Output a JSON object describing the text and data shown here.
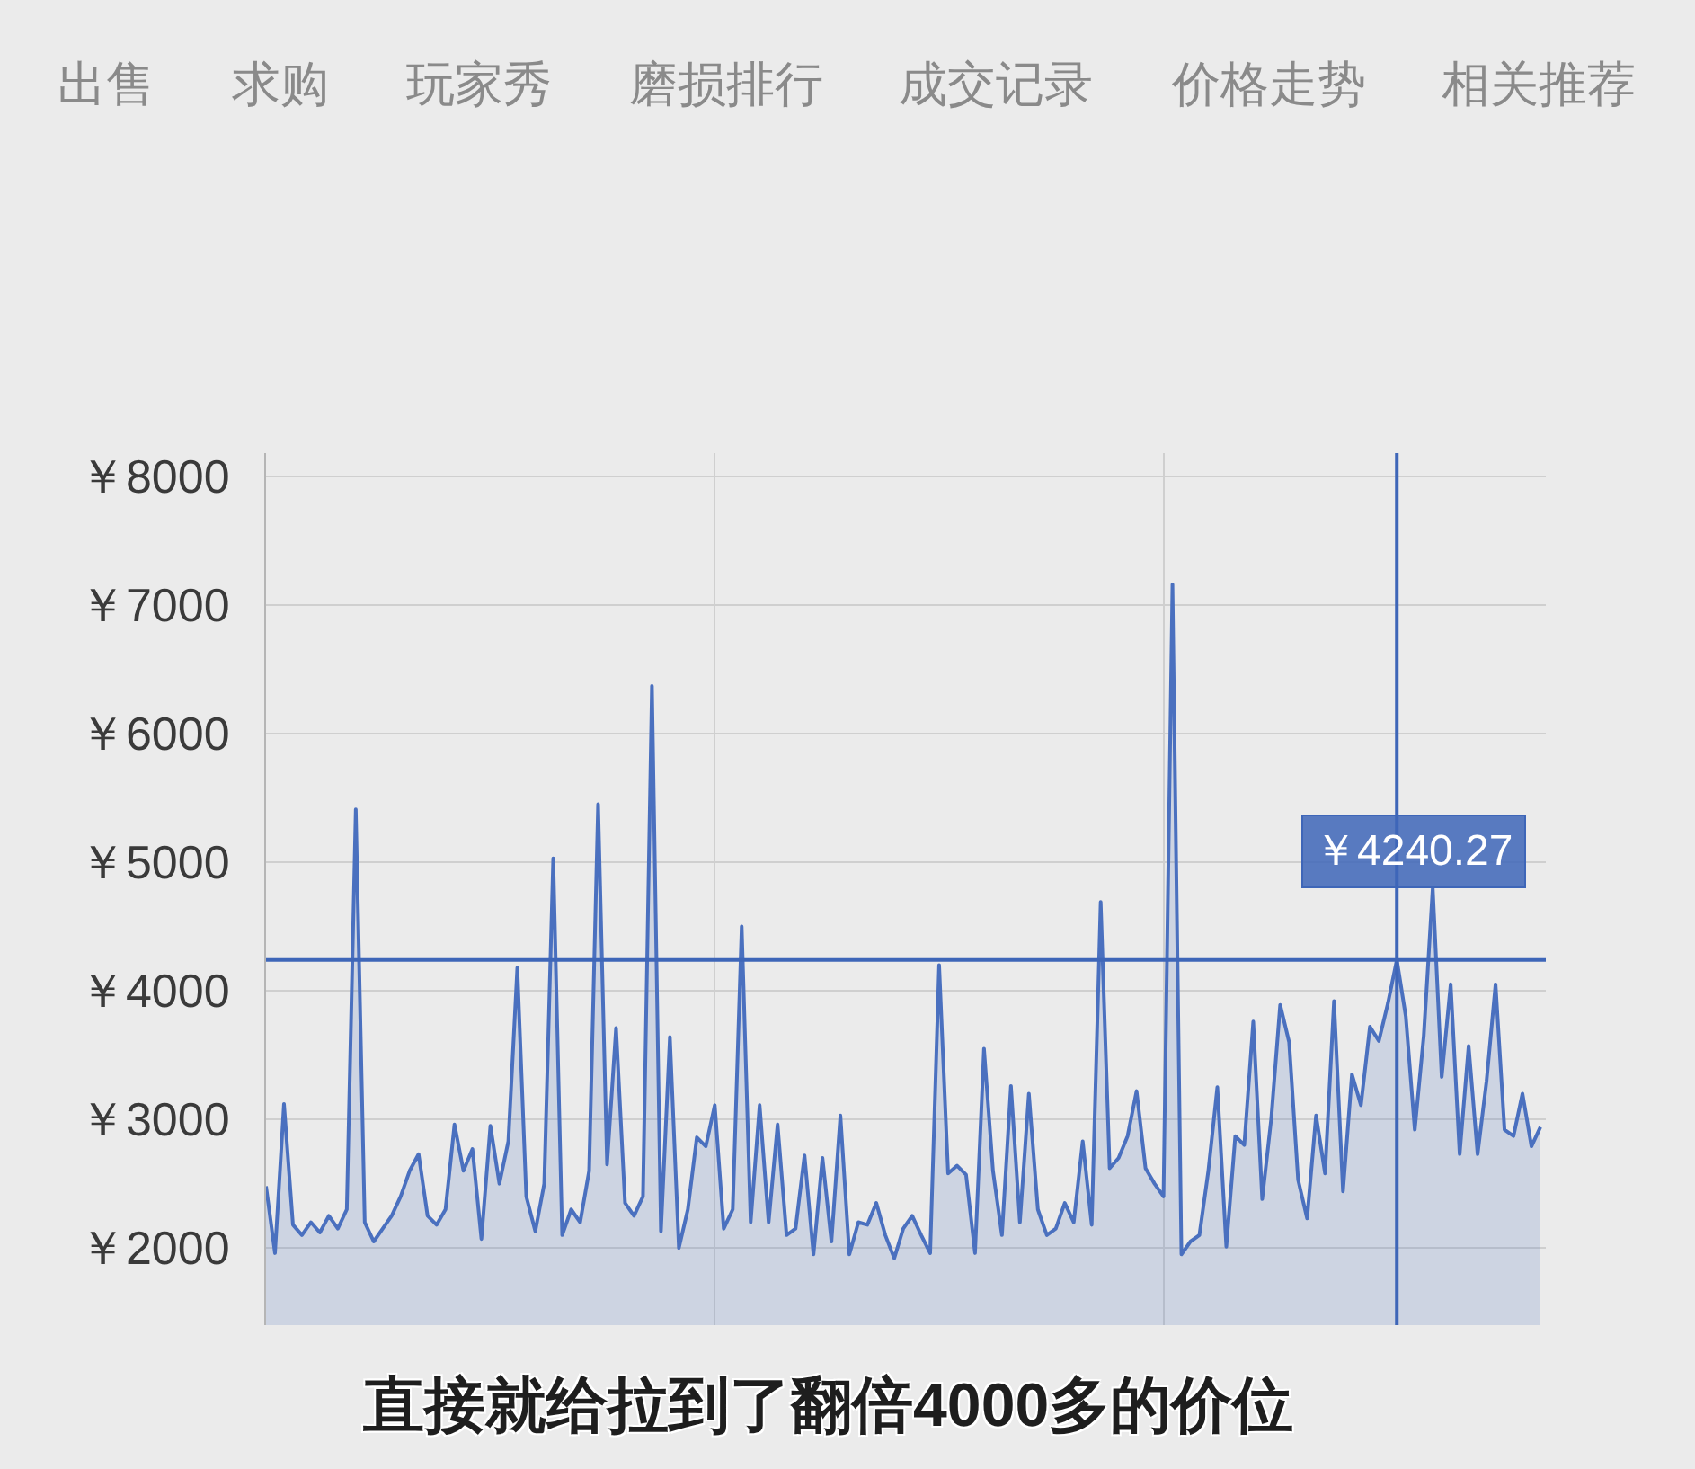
{
  "chart_data": {
    "type": "area",
    "categories": [
      null,
      null,
      null,
      null,
      null,
      null,
      null,
      null,
      null,
      null,
      null,
      null,
      null,
      null,
      null,
      null,
      null,
      null,
      null,
      null,
      null,
      null,
      null,
      null,
      null,
      null,
      null,
      null,
      null,
      null,
      null,
      null,
      null,
      null,
      null,
      null,
      null,
      null,
      null,
      null,
      null,
      null,
      null,
      null,
      null,
      null,
      null,
      null,
      null,
      null,
      null,
      null,
      null,
      null,
      null,
      null,
      null,
      null,
      null,
      null,
      null,
      null,
      null,
      null,
      null,
      null,
      null,
      null,
      null,
      null,
      null,
      null,
      null,
      null,
      null,
      null,
      null,
      null,
      null,
      null,
      null,
      null,
      null,
      null,
      null,
      null,
      null,
      null,
      null,
      null,
      null,
      null,
      null,
      null,
      null,
      null,
      null,
      null,
      null,
      null,
      null,
      null,
      null,
      null,
      null,
      null,
      null,
      null,
      null,
      null,
      null,
      null,
      null,
      null,
      null,
      null,
      null,
      null,
      null,
      null,
      null,
      null,
      null,
      null,
      null,
      null,
      null,
      null,
      null,
      null,
      null,
      null,
      null,
      null,
      null,
      null,
      null,
      null,
      null,
      null,
      null,
      null,
      null
    ],
    "series": [
      {
        "color": "#4a70bf",
        "values": [
          2480,
          1960,
          3120,
          2180,
          2100,
          2200,
          2120,
          2250,
          2150,
          2300,
          5410,
          2200,
          2050,
          2150,
          2250,
          2400,
          2600,
          2730,
          2250,
          2180,
          2300,
          2960,
          2600,
          2770,
          2070,
          2950,
          2500,
          2830,
          4180,
          2400,
          2130,
          2500,
          5030,
          2100,
          2300,
          2200,
          2600,
          5450,
          2650,
          3710,
          2350,
          2250,
          2400,
          6370,
          2130,
          3640,
          2000,
          2300,
          2860,
          2790,
          3110,
          2150,
          2300,
          4500,
          2200,
          3110,
          2200,
          2960,
          2100,
          2150,
          2720,
          1950,
          2700,
          2050,
          3030,
          1950,
          2200,
          2180,
          2350,
          2100,
          1920,
          2150,
          2250,
          2100,
          1960,
          4200,
          2580,
          2640,
          2570,
          1960,
          3550,
          2600,
          2100,
          3260,
          2200,
          3200,
          2300,
          2100,
          2150,
          2350,
          2200,
          2830,
          2180,
          4690,
          2620,
          2700,
          2870,
          3220,
          2620,
          2500,
          2400,
          7160,
          1950,
          2050,
          2100,
          2600,
          3250,
          2010,
          2870,
          2800,
          3760,
          2380,
          3000,
          3890,
          3600,
          2530,
          2230,
          3030,
          2580,
          3920,
          2440,
          3350,
          3110,
          3720,
          3610,
          3900,
          4240.27,
          3800,
          2920,
          3650,
          4800,
          3330,
          4050,
          2730,
          3570,
          2730,
          3300,
          4050,
          2920,
          2870,
          3200,
          2790,
          2940
        ]
      }
    ],
    "ylim": [
      1400,
      8180
    ],
    "yticks": [
      {
        "value": 2000,
        "label": "￥2000"
      },
      {
        "value": 3000,
        "label": "￥3000"
      },
      {
        "value": 4000,
        "label": "￥4000"
      },
      {
        "value": 5000,
        "label": "￥5000"
      },
      {
        "value": 6000,
        "label": "￥6000"
      },
      {
        "value": 7000,
        "label": "￥7000"
      },
      {
        "value": 8000,
        "label": "￥8000"
      }
    ],
    "grid": true,
    "tick_labels": "y",
    "ref_lines": [
      {
        "axis": "y",
        "value": 4240.27,
        "label": "￥4240.27",
        "color": "#3e66b8"
      }
    ],
    "annotations": [
      "出售",
      "求购",
      "玩家秀",
      "磨损排行",
      "成交记录",
      "价格走势",
      "相关推荐"
    ],
    "subtitle": "直接就给拉到了翻倍4000多的价位"
  }
}
